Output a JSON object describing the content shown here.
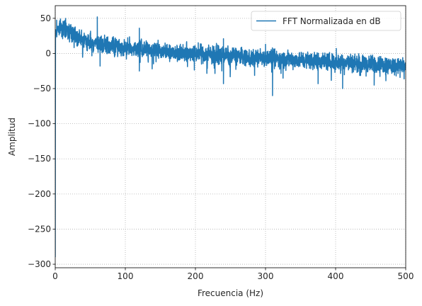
{
  "chart_data": {
    "type": "line",
    "xlabel": "Frecuencia (Hz)",
    "ylabel": "Amplitud",
    "xlim": [
      0,
      500
    ],
    "ylim": [
      -305,
      68
    ],
    "xticks": [
      0,
      100,
      200,
      300,
      400,
      500
    ],
    "yticks": [
      50,
      0,
      -50,
      -100,
      -150,
      -200,
      -250,
      -300
    ],
    "xtick_labels": [
      "0",
      "100",
      "200",
      "300",
      "400",
      "500"
    ],
    "ytick_labels": [
      "50",
      "0",
      "−50",
      "−100",
      "−150",
      "−200",
      "−250",
      "−300"
    ],
    "grid": true,
    "legend_position": "upper-right",
    "series": [
      {
        "name": "FFT Normalizada en dB",
        "color": "#1f77b4",
        "trend": {
          "x": [
            0,
            0.3,
            1,
            2,
            5,
            10,
            20,
            30,
            40,
            60,
            100,
            150,
            200,
            250,
            300,
            350,
            400,
            450,
            500
          ],
          "y": [
            -290,
            20,
            30,
            35,
            38,
            37,
            32,
            26,
            18,
            14,
            8,
            4,
            0,
            -3,
            -6,
            -9,
            -12,
            -15,
            -18
          ]
        },
        "noise_band": 10,
        "peaks": [
          {
            "x": 60,
            "y": 52
          },
          {
            "x": 120,
            "y": 36
          },
          {
            "x": 240,
            "y": 21
          },
          {
            "x": 300,
            "y": 13
          },
          {
            "x": 401,
            "y": 7
          }
        ],
        "dips": [
          {
            "x": 310,
            "y": -60
          },
          {
            "x": 240,
            "y": -43
          },
          {
            "x": 410,
            "y": -50
          },
          {
            "x": 455,
            "y": -45
          },
          {
            "x": 375,
            "y": -43
          },
          {
            "x": 64,
            "y": -18
          },
          {
            "x": 120,
            "y": -25
          }
        ]
      }
    ]
  }
}
